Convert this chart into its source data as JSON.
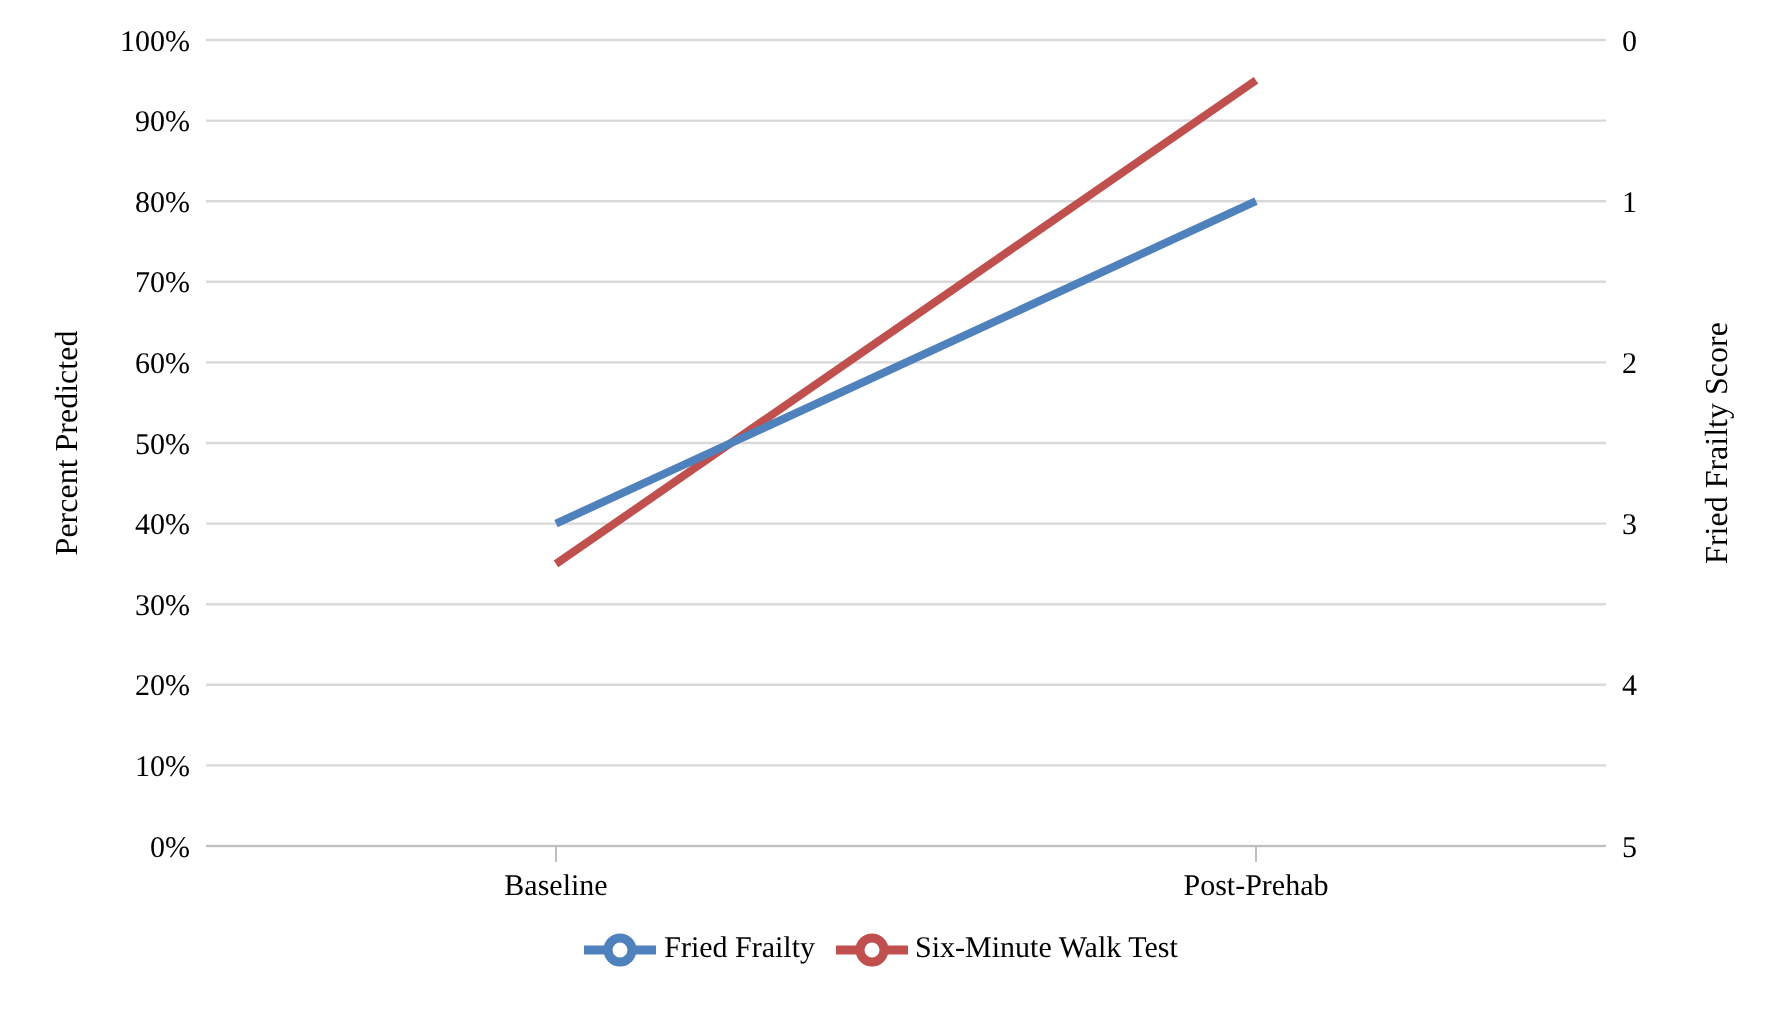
{
  "chart_data": {
    "type": "line",
    "categories": [
      "Baseline",
      "Post-Prehab"
    ],
    "series": [
      {
        "name": "Six-Minute Walk Test",
        "color": "#c0504d",
        "values": [
          35,
          95
        ]
      },
      {
        "name": "Fried Frailty",
        "color": "#4f81bd",
        "values": [
          3,
          1
        ],
        "axis": "y2"
      }
    ],
    "ylabel": "Percent Predicted",
    "y2label": "Fried Frailty Score",
    "ylim": [
      0,
      100
    ],
    "yticks": [
      {
        "value": 0,
        "label": "0%"
      },
      {
        "value": 10,
        "label": "10%"
      },
      {
        "value": 20,
        "label": "20%"
      },
      {
        "value": 30,
        "label": "30%"
      },
      {
        "value": 40,
        "label": "40%"
      },
      {
        "value": 50,
        "label": "50%"
      },
      {
        "value": 60,
        "label": "60%"
      },
      {
        "value": 70,
        "label": "70%"
      },
      {
        "value": 80,
        "label": "80%"
      },
      {
        "value": 90,
        "label": "90%"
      },
      {
        "value": 100,
        "label": "100%"
      }
    ],
    "y2lim": [
      5,
      0
    ],
    "y2ticks": [
      0,
      1,
      2,
      3,
      4,
      5
    ],
    "grid": "y",
    "legend": "bottom",
    "marker": "none",
    "line_style": "solid"
  }
}
